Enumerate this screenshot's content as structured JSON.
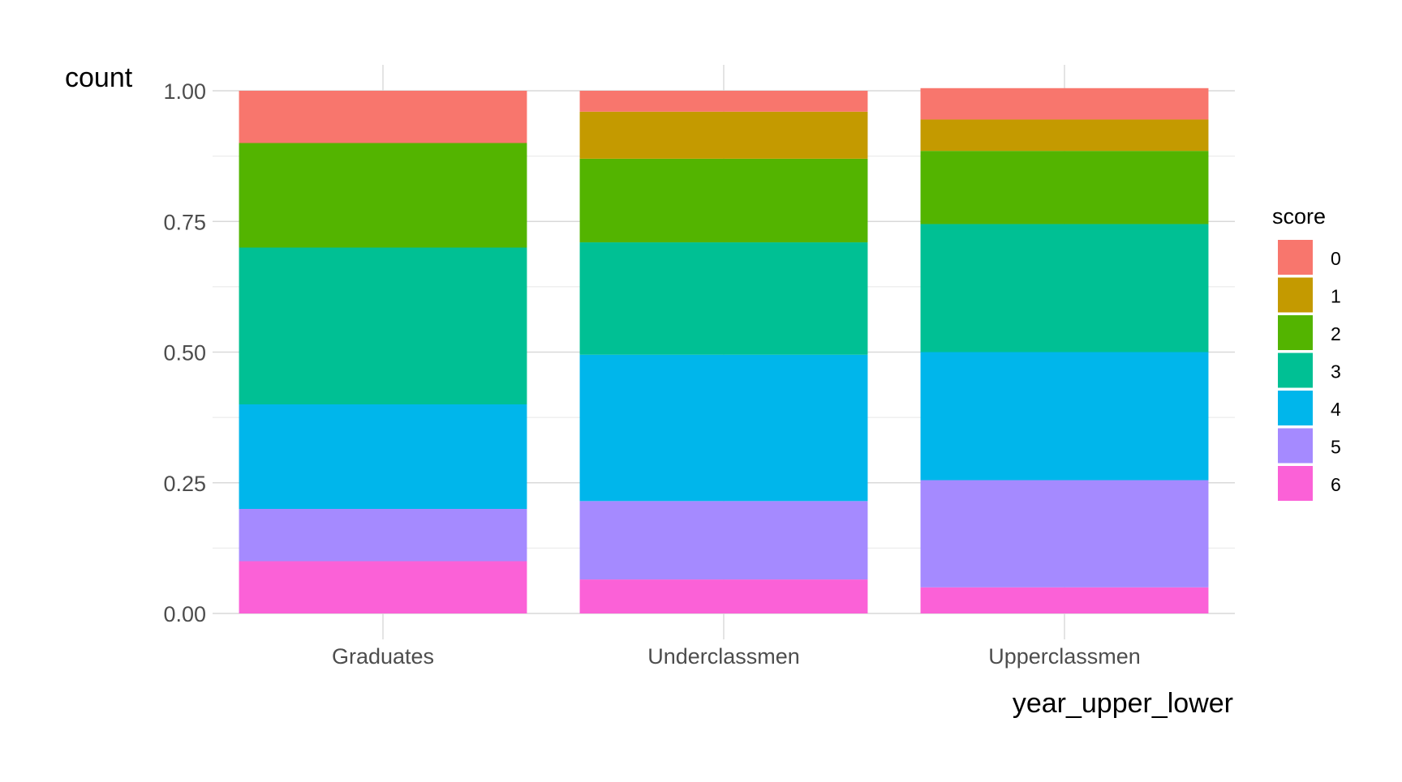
{
  "chart_data": {
    "type": "bar",
    "stacked": true,
    "position": "fill",
    "xlabel": "year_upper_lower",
    "ylabel": "count",
    "ylim": [
      0,
      1
    ],
    "y_ticks": [
      "0.00",
      "0.25",
      "0.50",
      "0.75",
      "1.00"
    ],
    "y_tick_values": [
      0,
      0.25,
      0.5,
      0.75,
      1.0
    ],
    "grid": true,
    "legend_title": "score",
    "legend_position": "right",
    "categories": [
      "Graduates",
      "Underclassmen",
      "Upperclassmen"
    ],
    "series": [
      {
        "name": "0",
        "color": "#F8766D",
        "values": [
          0.1,
          0.04,
          0.06
        ]
      },
      {
        "name": "1",
        "color": "#C49A00",
        "values": [
          0.0,
          0.09,
          0.06
        ]
      },
      {
        "name": "2",
        "color": "#53B400",
        "values": [
          0.2,
          0.16,
          0.14
        ]
      },
      {
        "name": "3",
        "color": "#00C094",
        "values": [
          0.3,
          0.215,
          0.245
        ]
      },
      {
        "name": "4",
        "color": "#00B6EB",
        "values": [
          0.2,
          0.28,
          0.245
        ]
      },
      {
        "name": "5",
        "color": "#A58AFF",
        "values": [
          0.1,
          0.15,
          0.205
        ]
      },
      {
        "name": "6",
        "color": "#FB61D7",
        "values": [
          0.1,
          0.065,
          0.05
        ]
      }
    ]
  }
}
